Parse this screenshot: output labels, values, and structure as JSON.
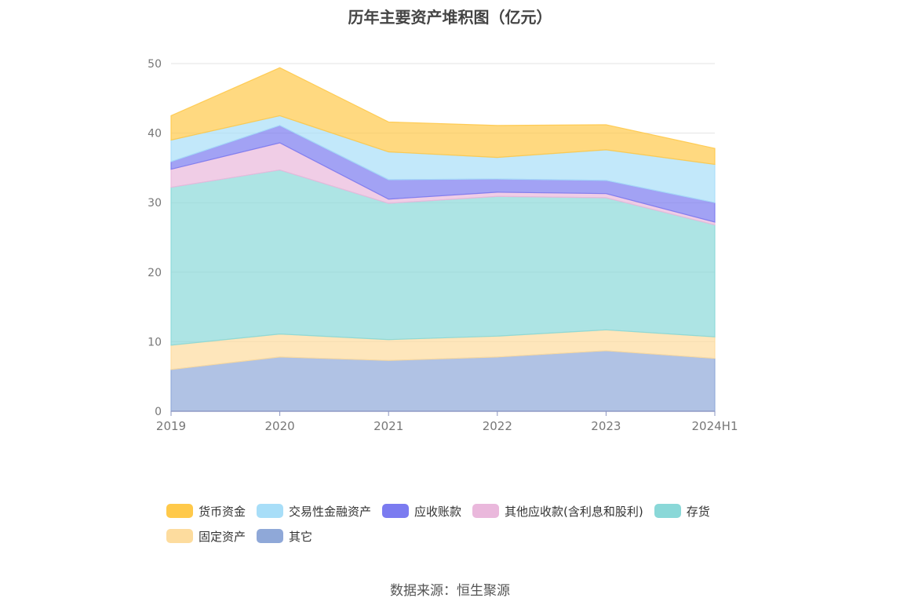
{
  "chart_data": {
    "type": "area",
    "stacked": true,
    "title": "历年主要资产堆积图（亿元）",
    "source": "数据来源：恒生聚源",
    "categories": [
      "2019",
      "2020",
      "2021",
      "2022",
      "2023",
      "2024H1"
    ],
    "ylim": [
      0,
      50
    ],
    "yticks": [
      "0",
      "10",
      "20",
      "30",
      "40",
      "50"
    ],
    "grid": true,
    "legend_position": "bottom",
    "series": [
      {
        "name": "其它",
        "color": "#8fa8d8",
        "values": [
          6.0,
          7.8,
          7.3,
          7.8,
          8.7,
          7.6
        ]
      },
      {
        "name": "固定资产",
        "color": "#fddc9e",
        "values": [
          3.5,
          3.3,
          3.0,
          3.0,
          3.0,
          3.1
        ]
      },
      {
        "name": "存货",
        "color": "#8ad8d8",
        "values": [
          22.7,
          23.6,
          19.6,
          20.1,
          19.0,
          16.1
        ]
      },
      {
        "name": "其他应收款(含利息和股利)",
        "color": "#eab8dc",
        "values": [
          2.6,
          3.9,
          0.6,
          0.6,
          0.6,
          0.4
        ]
      },
      {
        "name": "应收账款",
        "color": "#7b7bf0",
        "values": [
          1.1,
          2.5,
          2.8,
          1.9,
          1.9,
          2.8
        ]
      },
      {
        "name": "交易性金融资产",
        "color": "#a8def8",
        "values": [
          3.1,
          1.4,
          4.0,
          3.1,
          4.4,
          5.5
        ]
      },
      {
        "name": "货币资金",
        "color": "#ffc94a",
        "values": [
          3.5,
          6.9,
          4.3,
          4.6,
          3.6,
          2.3
        ]
      }
    ],
    "legend_order": [
      "货币资金",
      "交易性金融资产",
      "应收账款",
      "其他应收款(含利息和股利)",
      "存货",
      "固定资产",
      "其它"
    ]
  }
}
